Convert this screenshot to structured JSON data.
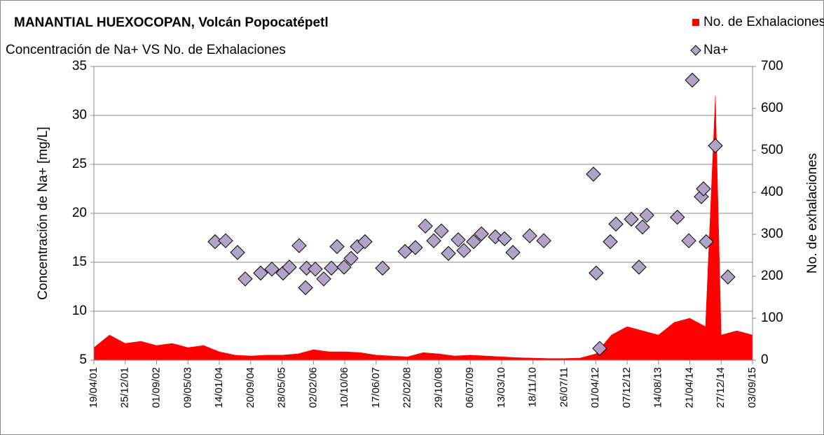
{
  "chart_data": {
    "type": "scatter",
    "title": "MANANTIAL HUEXOCOPAN, Volcán Popocatépetl",
    "subtitle": "Concentración de Na+ VS No. de Exhalaciones",
    "ylabel": "Concentración de Na+ [mg/L]",
    "y2label": "No. de exhalaciones",
    "ylim": [
      5,
      35
    ],
    "yticks": [
      5,
      10,
      15,
      20,
      25,
      30,
      35
    ],
    "y2lim": [
      0,
      700
    ],
    "y2ticks": [
      0,
      100,
      200,
      300,
      400,
      500,
      600,
      700
    ],
    "xlim": [
      "19/04/01",
      "03/09/15"
    ],
    "xticks": [
      "19/04/01",
      "25/12/01",
      "01/09/02",
      "09/05/03",
      "14/01/04",
      "20/09/04",
      "28/05/05",
      "02/02/06",
      "10/10/06",
      "17/06/07",
      "22/02/08",
      "29/10/08",
      "06/07/09",
      "13/03/10",
      "18/11/10",
      "26/07/11",
      "01/04/12",
      "07/12/12",
      "14/08/13",
      "21/04/14",
      "27/12/14",
      "03/09/15"
    ],
    "grid": true,
    "legend": "top-right",
    "series": [
      {
        "name": "No. de Exhalaciones",
        "type": "area",
        "axis": "y2",
        "color": "#ff0000",
        "x": [
          "19/04/01",
          "22/08/01",
          "25/12/01",
          "29/04/02",
          "01/09/02",
          "04/01/03",
          "09/05/03",
          "11/09/03",
          "14/01/04",
          "18/05/04",
          "20/09/04",
          "23/01/05",
          "28/05/05",
          "30/09/05",
          "02/02/06",
          "07/06/06",
          "10/10/06",
          "12/02/07",
          "17/06/07",
          "20/10/07",
          "22/02/08",
          "26/06/08",
          "29/10/08",
          "03/03/09",
          "06/07/09",
          "08/11/09",
          "13/03/10",
          "16/07/10",
          "18/11/10",
          "23/03/11",
          "26/07/11",
          "28/11/11",
          "01/04/12",
          "04/08/12",
          "07/12/12",
          "11/04/13",
          "14/08/13",
          "17/12/13",
          "21/04/14",
          "24/08/14",
          "11/11/14",
          "27/12/14",
          "01/05/15",
          "03/09/15"
        ],
        "values": [
          30,
          60,
          40,
          45,
          35,
          40,
          30,
          35,
          20,
          12,
          10,
          12,
          12,
          15,
          25,
          20,
          20,
          18,
          12,
          10,
          8,
          18,
          15,
          10,
          12,
          10,
          8,
          6,
          5,
          4,
          4,
          5,
          15,
          60,
          80,
          70,
          60,
          90,
          100,
          80,
          630,
          60,
          70,
          60
        ]
      },
      {
        "name": "Na+",
        "type": "scatter",
        "color": "#b3a2c7",
        "x": [
          "11/12/03",
          "04/03/04",
          "07/06/04",
          "07/08/04",
          "08/12/04",
          "08/03/05",
          "05/06/05",
          "25/07/05",
          "11/10/05",
          "01/12/05",
          "09/12/05",
          "17/02/06",
          "25/04/06",
          "25/06/06",
          "09/08/06",
          "04/10/06",
          "29/11/06",
          "18/01/07",
          "20/03/07",
          "07/08/07",
          "02/02/08",
          "25/04/08",
          "13/07/08",
          "18/09/08",
          "18/11/08",
          "13/01/09",
          "01/04/09",
          "16/05/09",
          "02/08/09",
          "03/10/09",
          "22/01/10",
          "05/04/10",
          "11/06/10",
          "23/10/10",
          "12/02/11",
          "14/03/12",
          "05/04/12",
          "03/05/12",
          "26/07/12",
          "09/09/12",
          "10/01/13",
          "12/03/13",
          "09/04/13",
          "13/05/13",
          "12/01/14",
          "13/04/14",
          "11/05/14",
          "22/07/14",
          "08/08/14",
          "30/08/14",
          "11/11/14",
          "19/02/15"
        ],
        "values": [
          17.1,
          17.2,
          16.0,
          13.3,
          13.9,
          14.3,
          13.9,
          14.5,
          16.7,
          12.4,
          14.4,
          14.3,
          13.3,
          14.4,
          16.6,
          14.5,
          15.4,
          16.6,
          17.1,
          14.4,
          16.1,
          16.5,
          18.7,
          17.2,
          18.2,
          15.9,
          17.3,
          16.2,
          17.1,
          17.9,
          17.6,
          17.4,
          16.0,
          17.7,
          17.2,
          24.0,
          13.9,
          6.2,
          17.1,
          18.9,
          19.4,
          14.5,
          18.6,
          19.8,
          19.6,
          17.2,
          33.6,
          21.7,
          22.5,
          17.1,
          26.9,
          13.5
        ]
      }
    ]
  }
}
